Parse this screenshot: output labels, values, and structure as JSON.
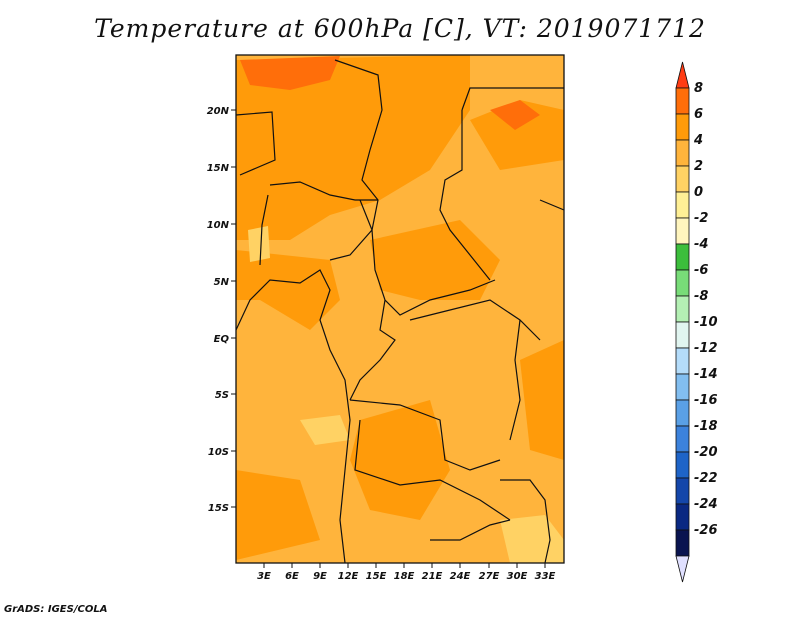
{
  "title": "Temperature at 600hPa [C], VT: 2019071712",
  "credit": "GrADS: IGES/COLA",
  "map": {
    "lat_labels": [
      "20N",
      "15N",
      "10N",
      "5N",
      "EQ",
      "5S",
      "10S",
      "15S"
    ],
    "lon_labels": [
      "3E",
      "6E",
      "9E",
      "12E",
      "15E",
      "18E",
      "21E",
      "24E",
      "27E",
      "30E",
      "33E"
    ]
  },
  "colorbar": {
    "labels": [
      "8",
      "6",
      "4",
      "2",
      "0",
      "-2",
      "-4",
      "-6",
      "-8",
      "-10",
      "-12",
      "-14",
      "-16",
      "-18",
      "-20",
      "-22",
      "-24",
      "-26"
    ],
    "colors": [
      "#ff3c14",
      "#ff6e0a",
      "#ff9b0a",
      "#ffb43c",
      "#ffd264",
      "#fff096",
      "#fff5be",
      "#3cbe3c",
      "#78dc78",
      "#b4f0b4",
      "#e1f5f0",
      "#b4dcfa",
      "#82bef0",
      "#5aa0e6",
      "#3c82dc",
      "#1e64c8",
      "#1446aa",
      "#0a2882",
      "#0a1450",
      "#e0e0ff"
    ]
  }
}
